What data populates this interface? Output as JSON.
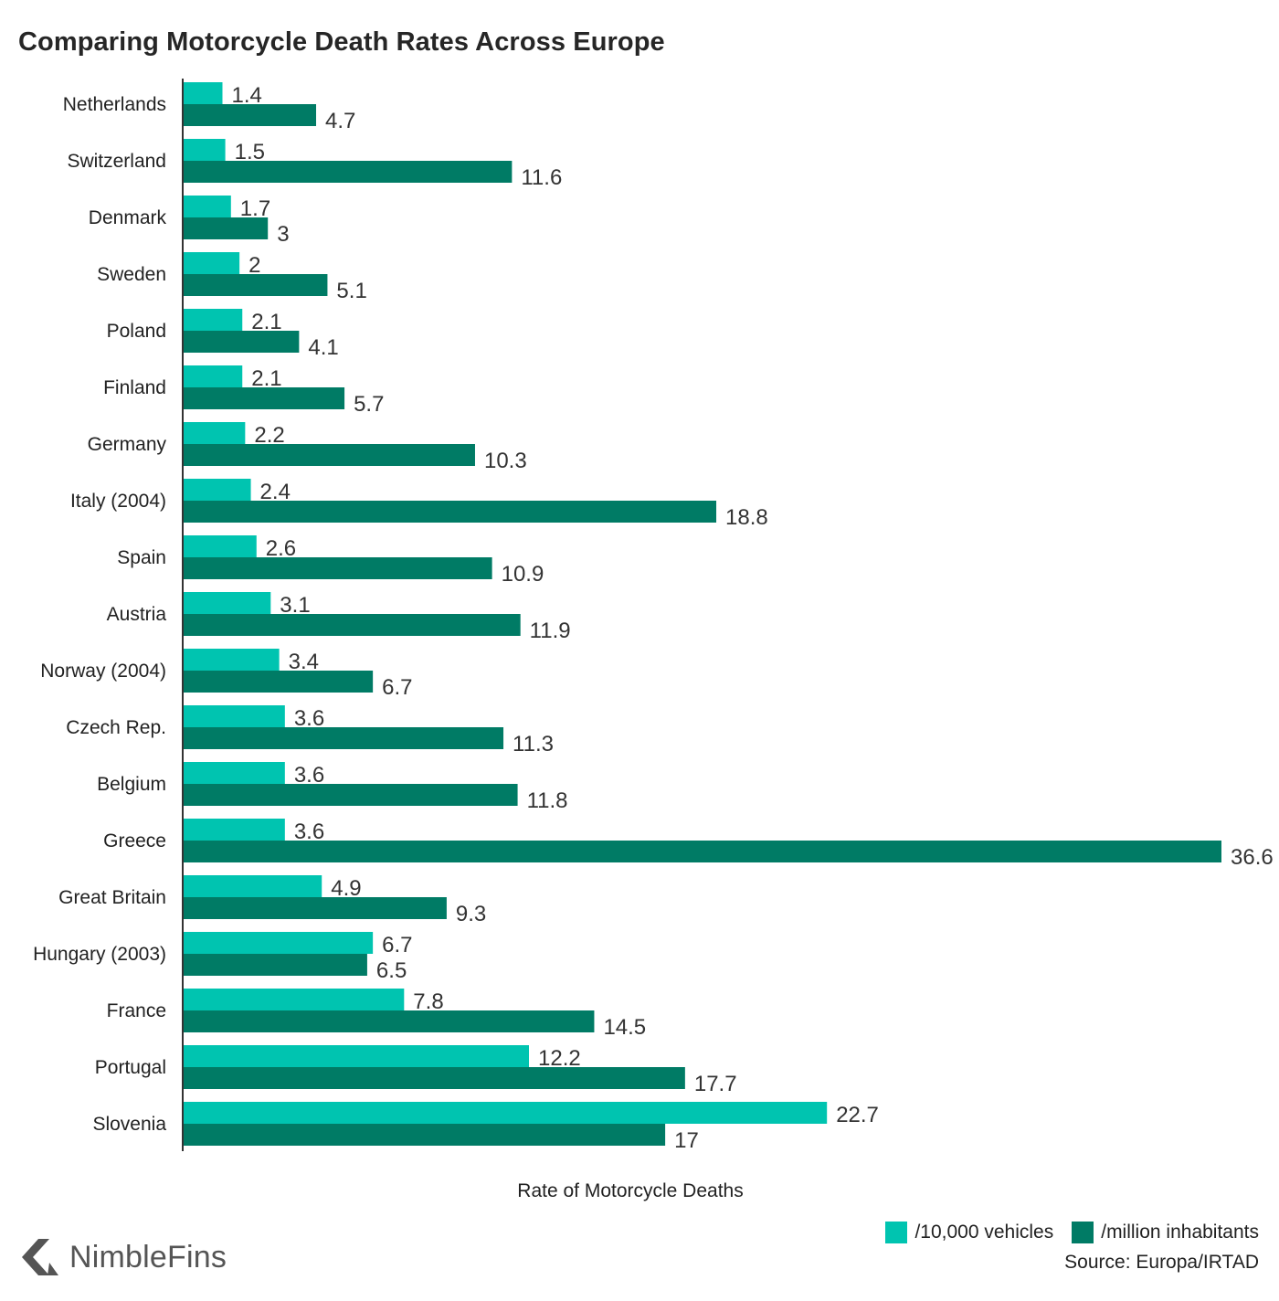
{
  "title": "Comparing Motorcycle Death Rates Across Europe",
  "colors": {
    "vehicles": "#00c4b0",
    "inhabitants": "#007b65",
    "axis": "#333333"
  },
  "chart_data": {
    "type": "bar",
    "orientation": "horizontal",
    "title": "Comparing Motorcycle Death Rates Across Europe",
    "xlabel": "Rate of Motorcycle Deaths",
    "ylabel": "",
    "xlim": [
      0,
      36.6
    ],
    "grid": false,
    "legend_position": "bottom-right",
    "categories": [
      "Netherlands",
      "Switzerland",
      "Denmark",
      "Sweden",
      "Poland",
      "Finland",
      "Germany",
      "Italy (2004)",
      "Spain",
      "Austria",
      "Norway (2004)",
      "Czech Rep.",
      "Belgium",
      "Greece",
      "Great Britain",
      "Hungary (2003)",
      "France",
      "Portugal",
      "Slovenia"
    ],
    "series": [
      {
        "name": "/10,000 vehicles",
        "values": [
          1.4,
          1.5,
          1.7,
          2,
          2.1,
          2.1,
          2.2,
          2.4,
          2.6,
          3.1,
          3.4,
          3.6,
          3.6,
          3.6,
          4.9,
          6.7,
          7.8,
          12.2,
          22.7
        ]
      },
      {
        "name": "/million inhabitants",
        "values": [
          4.7,
          11.6,
          3,
          5.1,
          4.1,
          5.7,
          10.3,
          18.8,
          10.9,
          11.9,
          6.7,
          11.3,
          11.8,
          36.6,
          9.3,
          6.5,
          14.5,
          17.7,
          17
        ]
      }
    ]
  },
  "legend": {
    "vehicles_label": "/10,000 vehicles",
    "inhabitants_label": "/million inhabitants"
  },
  "source": "Source: Europa/IRTAD",
  "logo": {
    "text": "NimbleFins",
    "icon": "nimblefins-chevron-icon"
  }
}
